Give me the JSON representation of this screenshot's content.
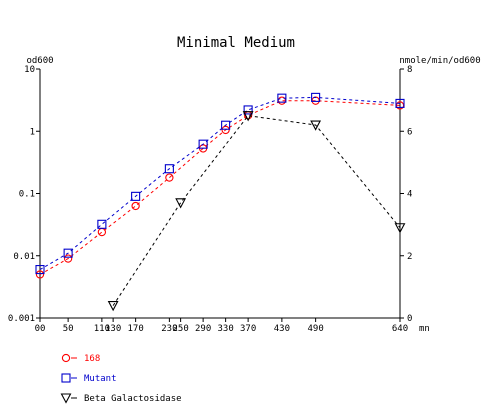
{
  "chart_data": {
    "type": "line",
    "title": "Minimal Medium",
    "ylabel_left": "od600",
    "ylabel_right": "nmole/min/od600",
    "x_unit": "mn",
    "x_ticks": [
      0,
      50,
      110,
      130,
      170,
      230,
      250,
      290,
      330,
      370,
      430,
      490,
      640
    ],
    "x_tick_labels": [
      "00",
      "50",
      "110",
      "130",
      "170",
      "230",
      "250",
      "290",
      "330",
      "370",
      "430",
      "490",
      "640"
    ],
    "xlim": [
      0,
      640
    ],
    "y_left": {
      "scale": "log",
      "ylim": [
        0.001,
        10
      ],
      "ticks": [
        0.001,
        0.01,
        0.1,
        1,
        10
      ],
      "tick_labels": [
        "0.001",
        "0.01",
        "0.1",
        "1",
        "10"
      ]
    },
    "y_right": {
      "scale": "linear",
      "ylim": [
        0,
        8
      ],
      "ticks": [
        0,
        2,
        4,
        6,
        8
      ],
      "tick_labels": [
        "0",
        "2",
        "4",
        "6",
        "8"
      ]
    },
    "series": [
      {
        "name": "168",
        "axis": "left",
        "color": "#ff0000",
        "marker": "circle",
        "x": [
          0,
          50,
          110,
          170,
          230,
          290,
          330,
          370,
          430,
          490,
          640
        ],
        "values": [
          0.005,
          0.009,
          0.024,
          0.063,
          0.18,
          0.53,
          1.05,
          1.8,
          3.1,
          3.1,
          2.6
        ]
      },
      {
        "name": "Mutant",
        "axis": "left",
        "color": "#0000cc",
        "marker": "square",
        "x": [
          0,
          50,
          110,
          170,
          230,
          290,
          330,
          370,
          430,
          490,
          640
        ],
        "values": [
          0.006,
          0.011,
          0.032,
          0.09,
          0.25,
          0.62,
          1.25,
          2.2,
          3.4,
          3.5,
          2.8
        ]
      },
      {
        "name": "Beta Galactosidase",
        "axis": "right",
        "color": "#000000",
        "marker": "triangle-down",
        "x": [
          130,
          250,
          370,
          490,
          640
        ],
        "values": [
          0.4,
          3.7,
          6.5,
          6.2,
          2.9
        ]
      }
    ],
    "grid": false,
    "legend_position": "bottom-left"
  },
  "legend": {
    "items": [
      {
        "label": "168",
        "color": "#ff0000",
        "marker": "circle"
      },
      {
        "label": "Mutant",
        "color": "#0000cc",
        "marker": "square"
      },
      {
        "label": "Beta Galactosidase",
        "color": "#000000",
        "marker": "triangle-down"
      }
    ]
  }
}
